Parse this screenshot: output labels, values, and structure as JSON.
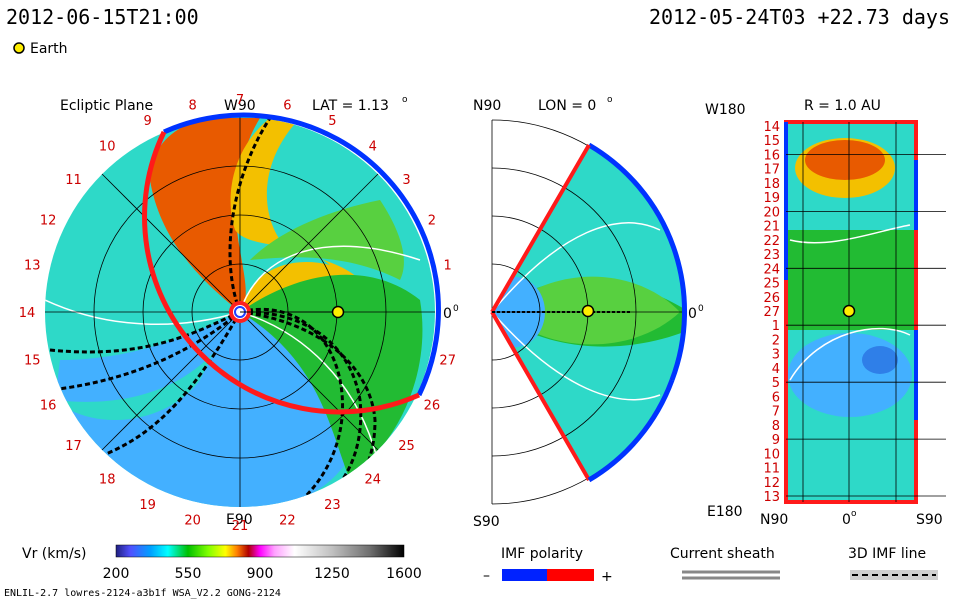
{
  "header": {
    "model_time": "2012-06-15T21:00",
    "ref_time": "2012-05-24T03 +22.73 days",
    "earth_legend": "Earth"
  },
  "panels": {
    "ecliptic": {
      "title": "Ecliptic Plane",
      "lat_label": "LAT = 1.13",
      "lat_sup": "o",
      "top_label": "W90",
      "bottom_label": "E90",
      "right_label": "0",
      "right_sup": "0"
    },
    "meridional": {
      "top_label": "N90",
      "lon_label": "LON = 0",
      "lon_sup": "o",
      "bottom_label": "S90",
      "right_label": "0",
      "right_sup": "0"
    },
    "map": {
      "r_label": "R = 1.0 AU",
      "top_left": "W180",
      "bottom_left": "E180",
      "x_left": "N90",
      "x_mid": "0",
      "x_mid_sup": "o",
      "x_right": "S90"
    }
  },
  "colorbar": {
    "label": "Vr (km/s)",
    "ticks": [
      "200",
      "550",
      "900",
      "1250",
      "1600"
    ]
  },
  "legends": {
    "imf_title": "IMF polarity",
    "imf_minus": "–",
    "imf_plus": "+",
    "sheath_title": "Current sheath",
    "imf3d_title": "3D IMF line"
  },
  "footer": {
    "left": "ENLIL-2.7 lowres-2124-a3b1f WSA_V2.2 GONG-2124"
  },
  "colors": {
    "earth": "#ffee00",
    "positive": "#ff0000",
    "negative": "#0022ff",
    "slow_wind": "#43b0ff",
    "fast_wind": "#e85a00",
    "mid_wind": "#22bb33"
  },
  "chart_data": [
    {
      "type": "heatmap",
      "name": "ecliptic-plane",
      "projection": "polar",
      "angle_labels": [
        "19",
        "20",
        "21",
        "22",
        "23",
        "24",
        "25",
        "26",
        "27",
        "0",
        "1",
        "2",
        "3",
        "4",
        "5",
        "6",
        "7",
        "8",
        "9",
        "10",
        "11",
        "12",
        "13",
        "14",
        "15",
        "16",
        "17",
        "18"
      ],
      "earth_angle_deg": 0,
      "earth_r_au": 1.0
    },
    {
      "type": "heatmap",
      "name": "meridional-plane",
      "projection": "polar",
      "earth_angle_deg": 0,
      "earth_r_au": 1.0
    },
    {
      "type": "heatmap",
      "name": "synoptic-map",
      "y_tick_labels": [
        "14",
        "15",
        "16",
        "17",
        "18",
        "19",
        "20",
        "21",
        "22",
        "23",
        "24",
        "25",
        "26",
        "27",
        "1",
        "2",
        "3",
        "4",
        "5",
        "6",
        "7",
        "8",
        "9",
        "10",
        "11",
        "12",
        "13"
      ],
      "earth_row": "27"
    },
    {
      "type": "heatmap",
      "name": "velocity-colorbar",
      "vmin": 200,
      "vmax": 1600,
      "colors": [
        "#202080",
        "#5050ff",
        "#00a0ff",
        "#00ffff",
        "#00c000",
        "#80ff00",
        "#ffff00",
        "#ff8000",
        "#b00000",
        "#ff00ff",
        "#ffa0ff",
        "#ffffff",
        "#c0c0c0",
        "#808080",
        "#404040",
        "#000000"
      ]
    }
  ]
}
